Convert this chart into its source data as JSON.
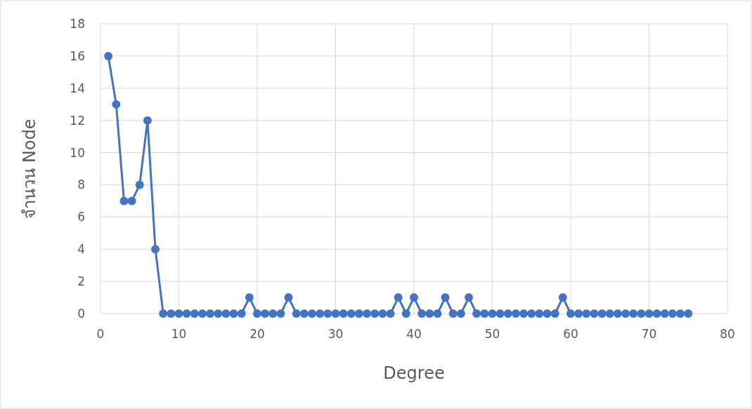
{
  "chart_data": {
    "type": "line",
    "xlabel": "Degree",
    "ylabel": "จำนวน Node",
    "x": [
      1,
      2,
      3,
      4,
      5,
      6,
      7,
      8,
      9,
      10,
      11,
      12,
      13,
      14,
      15,
      16,
      17,
      18,
      19,
      20,
      21,
      22,
      23,
      24,
      25,
      26,
      27,
      28,
      29,
      30,
      31,
      32,
      33,
      34,
      35,
      36,
      37,
      38,
      39,
      40,
      41,
      42,
      43,
      44,
      45,
      46,
      47,
      48,
      49,
      50,
      51,
      52,
      53,
      54,
      55,
      56,
      57,
      58,
      59,
      60,
      61,
      62,
      63,
      64,
      65,
      66,
      67,
      68,
      69,
      70,
      71,
      72,
      73,
      74,
      75
    ],
    "values": [
      16,
      13,
      7,
      7,
      8,
      12,
      4,
      0,
      0,
      0,
      0,
      0,
      0,
      0,
      0,
      0,
      0,
      0,
      1,
      0,
      0,
      0,
      0,
      1,
      0,
      0,
      0,
      0,
      0,
      0,
      0,
      0,
      0,
      0,
      0,
      0,
      0,
      1,
      0,
      1,
      0,
      0,
      0,
      1,
      0,
      0,
      1,
      0,
      0,
      0,
      0,
      0,
      0,
      0,
      0,
      0,
      0,
      0,
      1,
      0,
      0,
      0,
      0,
      0,
      0,
      0,
      0,
      0,
      0,
      0,
      0,
      0,
      0,
      0,
      0
    ],
    "color": "#4472c4",
    "marker": "circle",
    "line_style": "solid",
    "grid": true,
    "xlim": [
      0,
      80
    ],
    "xticks": [
      0,
      10,
      20,
      30,
      40,
      50,
      60,
      70,
      80
    ],
    "ylim": [
      0,
      18
    ],
    "yticks": [
      0,
      2,
      4,
      6,
      8,
      10,
      12,
      14,
      16,
      18
    ]
  }
}
